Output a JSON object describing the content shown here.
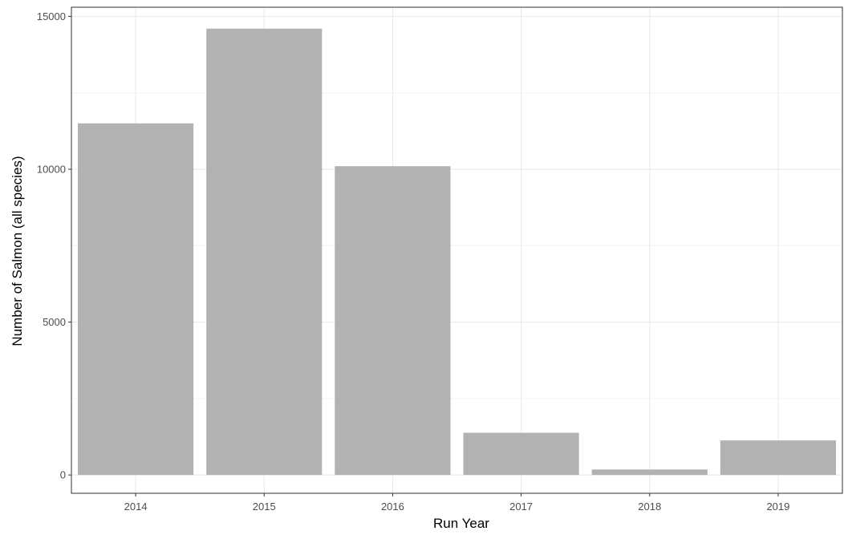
{
  "chart_data": {
    "type": "bar",
    "title": "",
    "xlabel": "Run Year",
    "ylabel": "Number of Salmon (all species)",
    "categories": [
      "2014",
      "2015",
      "2016",
      "2017",
      "2018",
      "2019"
    ],
    "values": [
      11500,
      14600,
      10100,
      1380,
      180,
      1130
    ],
    "ylim": [
      -600,
      15300
    ],
    "yticks": [
      0,
      5000,
      10000,
      15000
    ],
    "ytick_labels": [
      "0",
      "5000",
      "10000",
      "15000"
    ],
    "grid": true,
    "legend": "none",
    "colors": {
      "bar": "#b2b2b2",
      "grid_major": "#ebebeb",
      "grid_minor": "#f4f4f4",
      "panel_border": "#333333",
      "background": "#ffffff"
    }
  }
}
